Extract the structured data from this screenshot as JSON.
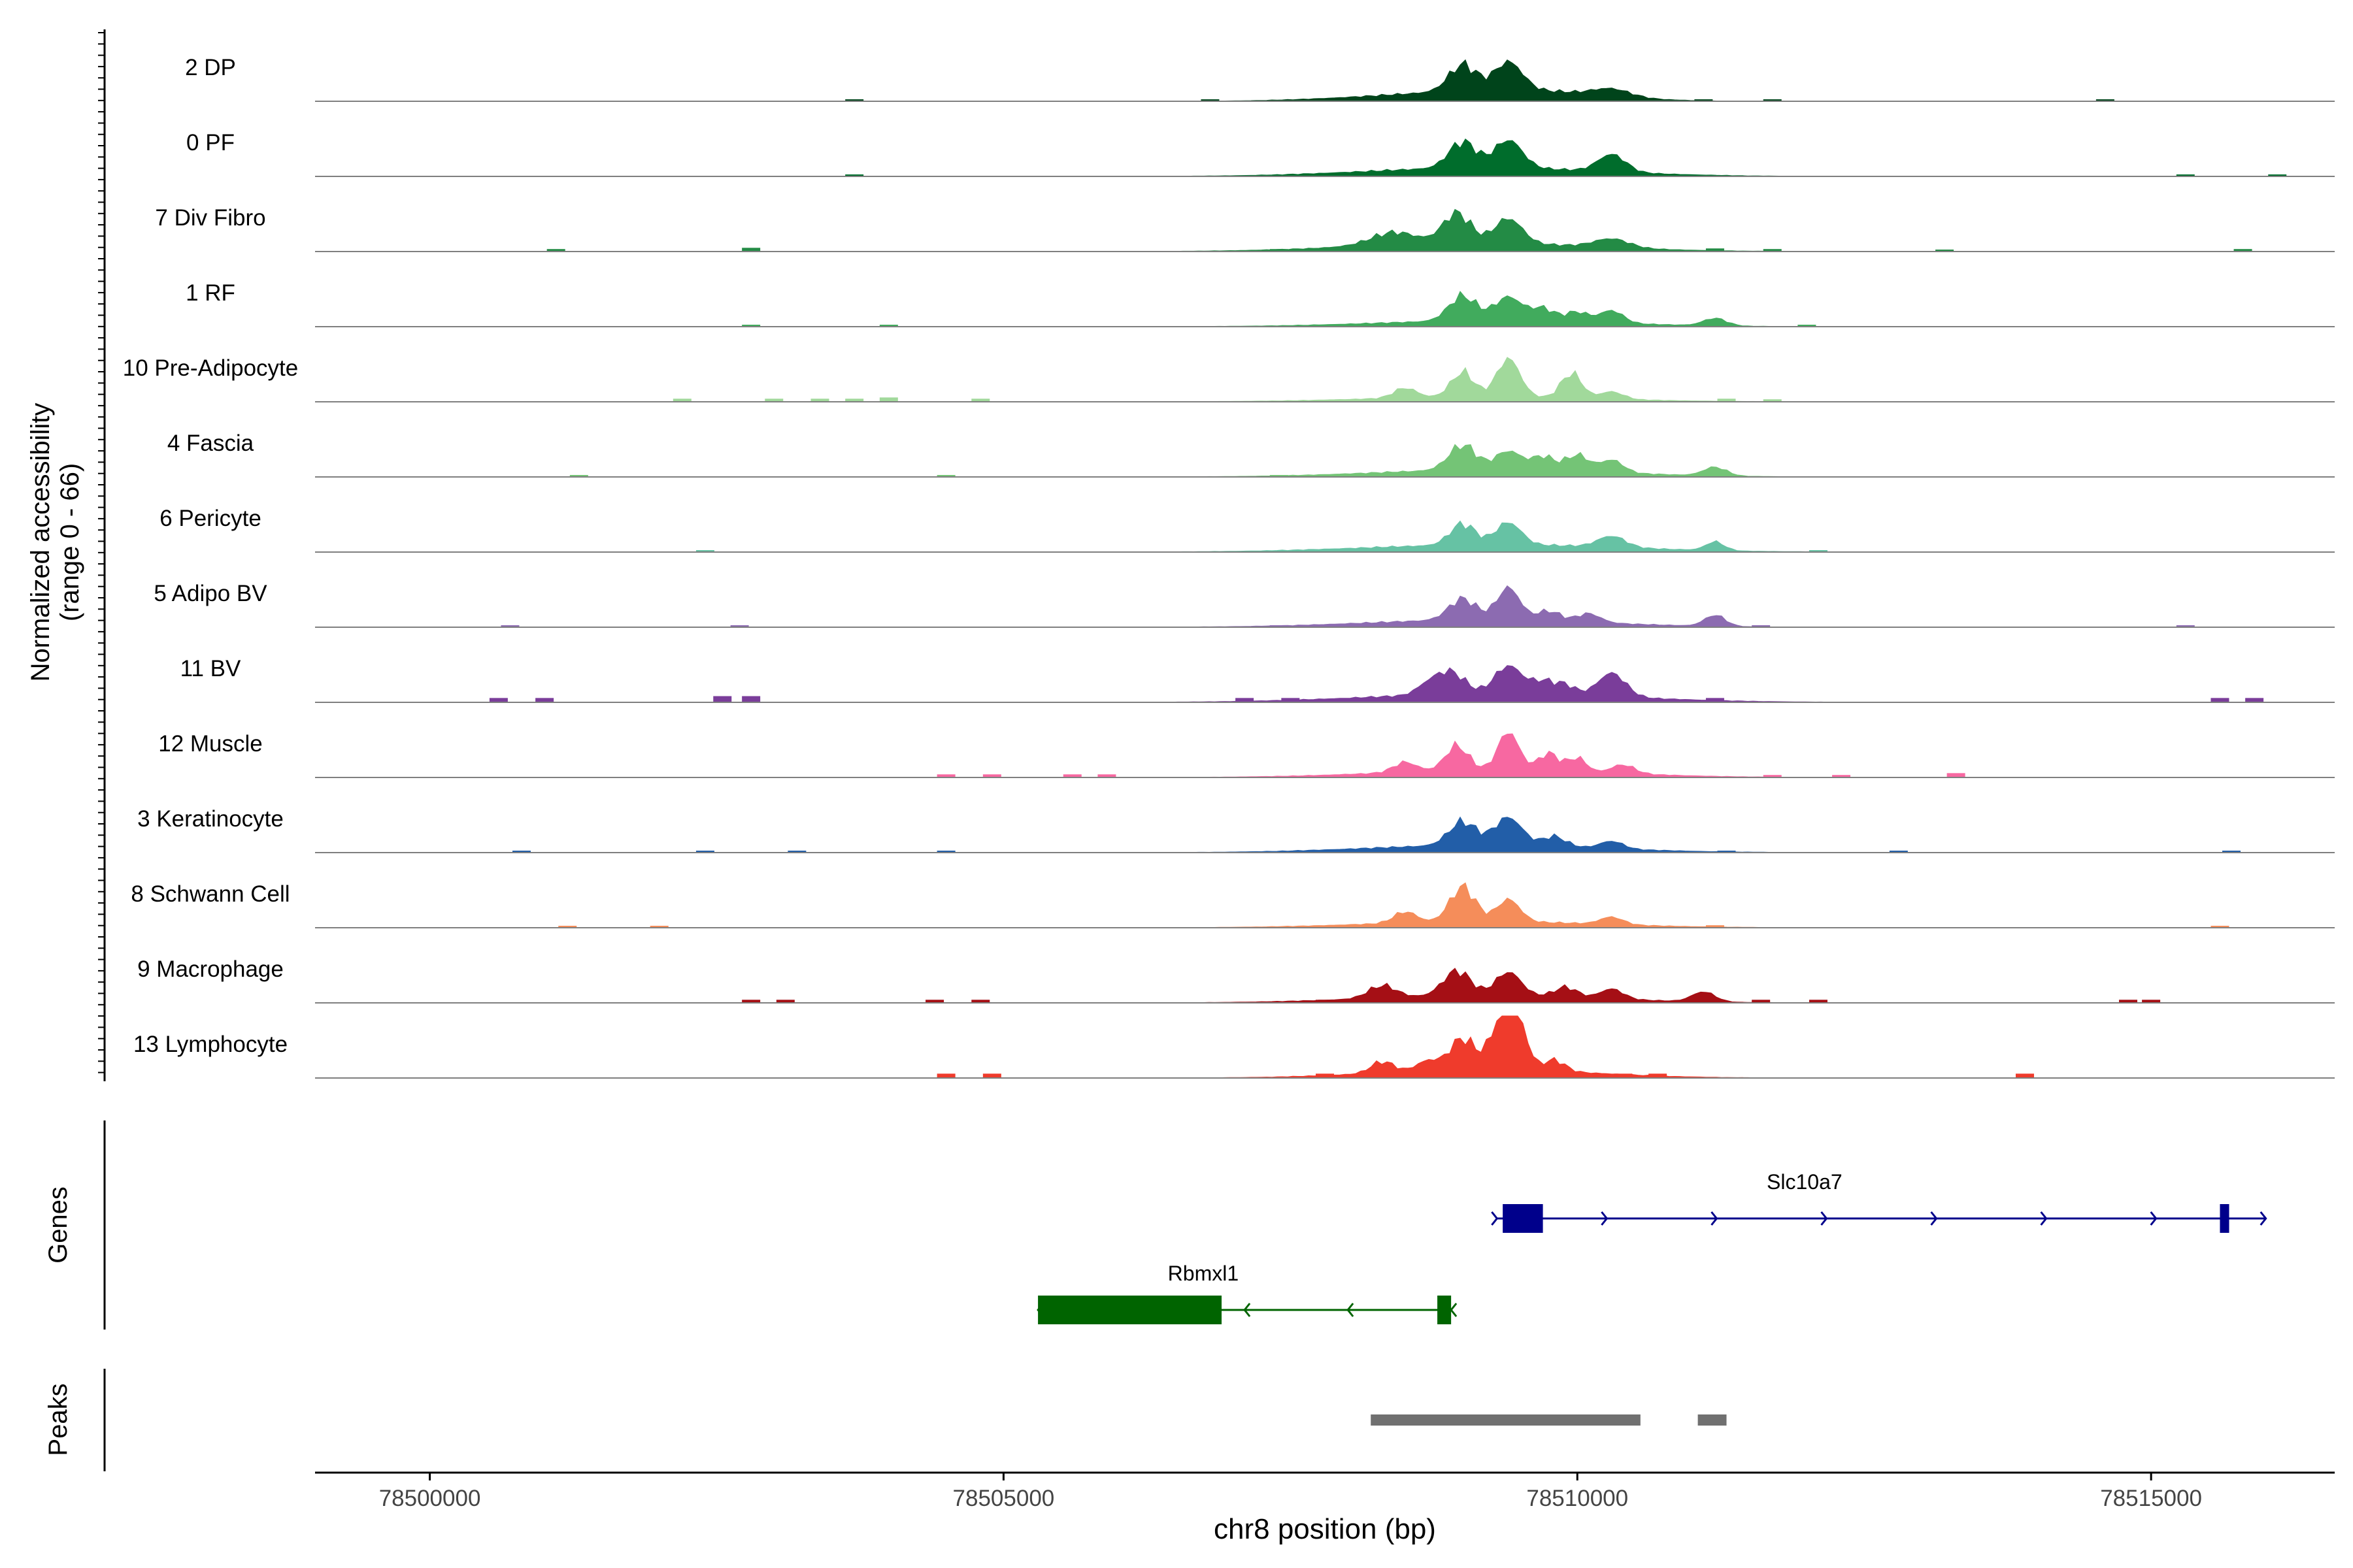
{
  "chart_data": {
    "type": "area",
    "title": "",
    "ylabel_line1": "Normalized accessibility",
    "ylabel_line2": "(range 0 - 66)",
    "y_range": [
      0,
      66
    ],
    "xlabel": "chr8 position (bp)",
    "x_range": [
      78499000,
      78516600
    ],
    "x_ticks": [
      78500000,
      78505000,
      78510000,
      78515000
    ],
    "x_tick_labels": [
      "78500000",
      "78505000",
      "78510000",
      "78515000"
    ],
    "tracks": [
      {
        "name": "2 DP",
        "color": "#00441B",
        "peaks": [
          [
            78509000,
            0.42,
            120
          ],
          [
            78509400,
            0.45,
            120
          ],
          [
            78510300,
            0.12,
            160
          ]
        ],
        "broad": [
          [
            78508900,
            0.12,
            800
          ],
          [
            78509700,
            0.1,
            600
          ]
        ],
        "blips": [
          [
            78503700,
            0.02
          ],
          [
            78506800,
            0.03
          ],
          [
            78507800,
            0.03
          ],
          [
            78511100,
            0.03
          ],
          [
            78511700,
            0.03
          ],
          [
            78514600,
            0.02
          ]
        ]
      },
      {
        "name": "0 PF",
        "color": "#006D2C",
        "peaks": [
          [
            78509000,
            0.42,
            120
          ],
          [
            78509400,
            0.45,
            120
          ],
          [
            78510300,
            0.28,
            120
          ]
        ],
        "broad": [
          [
            78509200,
            0.14,
            1000
          ]
        ],
        "blips": [
          [
            78503700,
            0.02
          ],
          [
            78515300,
            0.03
          ],
          [
            78516100,
            0.02
          ]
        ]
      },
      {
        "name": "7 Div Fibro",
        "color": "#238B45",
        "peaks": [
          [
            78508950,
            0.48,
            120
          ],
          [
            78509400,
            0.4,
            120
          ],
          [
            78508400,
            0.2,
            200
          ],
          [
            78510300,
            0.14,
            150
          ]
        ],
        "broad": [
          [
            78509100,
            0.14,
            1000
          ]
        ],
        "blips": [
          [
            78501100,
            0.04
          ],
          [
            78502800,
            0.06
          ],
          [
            78507400,
            0.04
          ],
          [
            78511200,
            0.05
          ],
          [
            78511700,
            0.04
          ],
          [
            78513200,
            0.03
          ],
          [
            78515800,
            0.04
          ]
        ]
      },
      {
        "name": "1 RF",
        "color": "#41AB5D",
        "peaks": [
          [
            78509000,
            0.4,
            120
          ],
          [
            78509400,
            0.38,
            120
          ],
          [
            78509700,
            0.2,
            100
          ],
          [
            78510000,
            0.16,
            100
          ],
          [
            78510300,
            0.2,
            100
          ],
          [
            78511200,
            0.12,
            100
          ]
        ],
        "broad": [
          [
            78509300,
            0.1,
            1000
          ]
        ],
        "blips": [
          [
            78502800,
            0.03
          ],
          [
            78504000,
            0.02
          ],
          [
            78512000,
            0.02
          ]
        ]
      },
      {
        "name": "10 Pre-Adipocyte",
        "color": "#A1D99B",
        "peaks": [
          [
            78509000,
            0.4,
            100
          ],
          [
            78509400,
            0.62,
            100
          ],
          [
            78509950,
            0.4,
            90
          ],
          [
            78508500,
            0.16,
            100
          ],
          [
            78510300,
            0.12,
            100
          ]
        ],
        "broad": [
          [
            78509200,
            0.08,
            1000
          ]
        ],
        "blips": [
          [
            78502200,
            0.05
          ],
          [
            78503000,
            0.05
          ],
          [
            78503400,
            0.05
          ],
          [
            78503700,
            0.05
          ],
          [
            78504000,
            0.07
          ],
          [
            78504800,
            0.05
          ],
          [
            78511300,
            0.05
          ],
          [
            78511700,
            0.04
          ]
        ]
      },
      {
        "name": "4 Fascia",
        "color": "#74C476",
        "peaks": [
          [
            78509000,
            0.4,
            120
          ],
          [
            78509400,
            0.3,
            110
          ],
          [
            78509700,
            0.22,
            100
          ],
          [
            78510000,
            0.26,
            100
          ],
          [
            78510300,
            0.2,
            100
          ],
          [
            78511200,
            0.14,
            100
          ]
        ],
        "broad": [
          [
            78509300,
            0.12,
            1000
          ]
        ],
        "blips": [
          [
            78501300,
            0.03
          ],
          [
            78504500,
            0.02
          ],
          [
            78507400,
            0.03
          ],
          [
            78508500,
            0.03
          ]
        ]
      },
      {
        "name": "6 Pericyte",
        "color": "#66C2A4",
        "peaks": [
          [
            78509000,
            0.34,
            110
          ],
          [
            78509400,
            0.36,
            110
          ],
          [
            78510300,
            0.18,
            120
          ],
          [
            78511200,
            0.14,
            80
          ]
        ],
        "broad": [
          [
            78509300,
            0.12,
            1100
          ]
        ],
        "blips": [
          [
            78502400,
            0.02
          ],
          [
            78508000,
            0.03
          ],
          [
            78512100,
            0.02
          ]
        ]
      },
      {
        "name": "5 Adipo BV",
        "color": "#8C6BB1",
        "peaks": [
          [
            78509000,
            0.34,
            120
          ],
          [
            78509400,
            0.52,
            100
          ],
          [
            78509750,
            0.16,
            100
          ],
          [
            78510100,
            0.14,
            100
          ],
          [
            78511200,
            0.18,
            90
          ]
        ],
        "broad": [
          [
            78509200,
            0.12,
            1000
          ]
        ],
        "blips": [
          [
            78500700,
            0.03
          ],
          [
            78502700,
            0.03
          ],
          [
            78507400,
            0.03
          ],
          [
            78511600,
            0.03
          ],
          [
            78515300,
            0.03
          ]
        ]
      },
      {
        "name": "11 BV",
        "color": "#7A3D9A",
        "peaks": [
          [
            78508900,
            0.35,
            120
          ],
          [
            78509400,
            0.45,
            120
          ],
          [
            78509700,
            0.2,
            100
          ],
          [
            78509900,
            0.15,
            90
          ],
          [
            78510300,
            0.38,
            120
          ],
          [
            78508700,
            0.16,
            100
          ]
        ],
        "broad": [
          [
            78509300,
            0.14,
            1100
          ]
        ],
        "blips": [
          [
            78500600,
            0.07
          ],
          [
            78501000,
            0.07
          ],
          [
            78502550,
            0.1
          ],
          [
            78502800,
            0.1
          ],
          [
            78507100,
            0.07
          ],
          [
            78507500,
            0.07
          ],
          [
            78508100,
            0.07
          ],
          [
            78511200,
            0.07
          ],
          [
            78515600,
            0.07
          ],
          [
            78515900,
            0.07
          ]
        ]
      },
      {
        "name": "12 Muscle",
        "color": "#F768A1",
        "peaks": [
          [
            78508950,
            0.4,
            100
          ],
          [
            78509400,
            0.62,
            90
          ],
          [
            78509750,
            0.28,
            90
          ],
          [
            78510000,
            0.22,
            80
          ],
          [
            78508500,
            0.16,
            100
          ],
          [
            78510400,
            0.14,
            100
          ]
        ],
        "broad": [
          [
            78509300,
            0.12,
            1000
          ]
        ],
        "blips": [
          [
            78504500,
            0.05
          ],
          [
            78504900,
            0.05
          ],
          [
            78505600,
            0.05
          ],
          [
            78505900,
            0.05
          ],
          [
            78511700,
            0.04
          ],
          [
            78512300,
            0.04
          ],
          [
            78513300,
            0.07
          ]
        ]
      },
      {
        "name": "3 Keratinocyte",
        "color": "#225EA8",
        "peaks": [
          [
            78509000,
            0.38,
            120
          ],
          [
            78509400,
            0.45,
            120
          ],
          [
            78509800,
            0.16,
            100
          ],
          [
            78510300,
            0.12,
            100
          ]
        ],
        "broad": [
          [
            78509200,
            0.12,
            1000
          ]
        ],
        "blips": [
          [
            78500800,
            0.02
          ],
          [
            78502400,
            0.02
          ],
          [
            78503200,
            0.02
          ],
          [
            78504500,
            0.02
          ],
          [
            78511300,
            0.03
          ],
          [
            78512800,
            0.02
          ],
          [
            78515700,
            0.02
          ]
        ]
      },
      {
        "name": "8 Schwann Cell",
        "color": "#F58D5A",
        "peaks": [
          [
            78509000,
            0.56,
            110
          ],
          [
            78509400,
            0.36,
            100
          ],
          [
            78508500,
            0.18,
            100
          ],
          [
            78510300,
            0.12,
            100
          ]
        ],
        "broad": [
          [
            78509200,
            0.1,
            1000
          ]
        ],
        "blips": [
          [
            78501200,
            0.03
          ],
          [
            78502000,
            0.03
          ],
          [
            78511200,
            0.04
          ],
          [
            78515600,
            0.03
          ]
        ]
      },
      {
        "name": "9 Macrophage",
        "color": "#A50F15",
        "peaks": [
          [
            78508950,
            0.4,
            120
          ],
          [
            78509400,
            0.38,
            110
          ],
          [
            78508300,
            0.2,
            120
          ],
          [
            78509900,
            0.16,
            100
          ],
          [
            78510300,
            0.16,
            100
          ],
          [
            78511100,
            0.16,
            100
          ]
        ],
        "broad": [
          [
            78509200,
            0.12,
            1000
          ]
        ],
        "blips": [
          [
            78502800,
            0.05
          ],
          [
            78503100,
            0.05
          ],
          [
            78504400,
            0.05
          ],
          [
            78504800,
            0.05
          ],
          [
            78507800,
            0.05
          ],
          [
            78511600,
            0.05
          ],
          [
            78512100,
            0.05
          ],
          [
            78514800,
            0.05
          ],
          [
            78515000,
            0.05
          ]
        ]
      },
      {
        "name": "13 Lymphocyte",
        "color": "#EF3B2C",
        "peaks": [
          [
            78509000,
            0.5,
            110
          ],
          [
            78509350,
            0.88,
            100
          ],
          [
            78509500,
            0.55,
            80
          ],
          [
            78508300,
            0.18,
            100
          ],
          [
            78508700,
            0.16,
            100
          ],
          [
            78509800,
            0.18,
            90
          ]
        ],
        "broad": [
          [
            78509200,
            0.14,
            900
          ]
        ],
        "blips": [
          [
            78504500,
            0.07
          ],
          [
            78504900,
            0.07
          ],
          [
            78507800,
            0.07
          ],
          [
            78510400,
            0.07
          ],
          [
            78510700,
            0.07
          ],
          [
            78513900,
            0.07
          ]
        ]
      }
    ],
    "genes_label": "Genes",
    "genes": [
      {
        "name": "Slc10a7",
        "strand": "+",
        "color": "#00008B",
        "start": 78509300,
        "end": 78516000,
        "exons": [
          [
            78509350,
            78509700
          ],
          [
            78515600,
            78515680
          ]
        ]
      },
      {
        "name": "Rbmxl1",
        "strand": "-",
        "color": "#006400",
        "start": 78505300,
        "end": 78508900,
        "exons": [
          [
            78505300,
            78506900
          ],
          [
            78508780,
            78508900
          ]
        ]
      }
    ],
    "peaks_label": "Peaks",
    "peak_regions": [
      [
        78508200,
        78510550
      ],
      [
        78511050,
        78511300
      ]
    ],
    "peak_color": "#707070"
  }
}
